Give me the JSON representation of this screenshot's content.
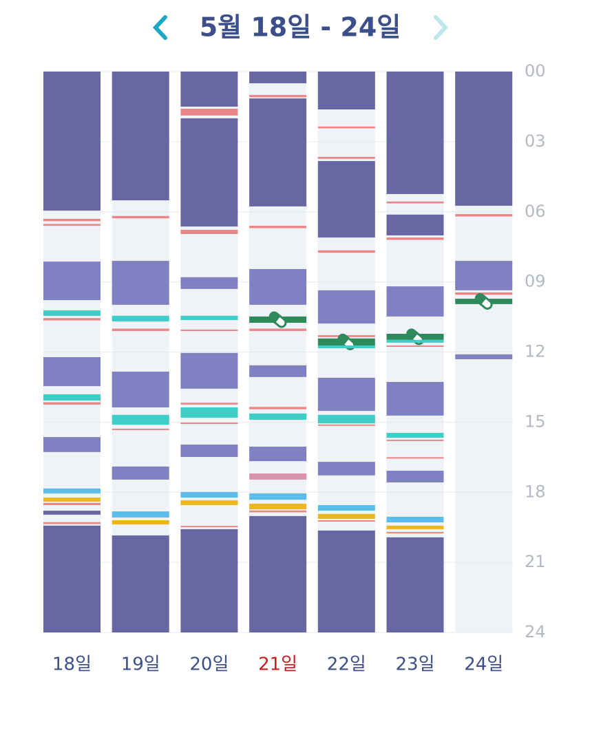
{
  "header": {
    "title": "5월 18일 - 24일"
  },
  "chart_data": {
    "type": "timeline",
    "ylim": [
      0,
      24
    ],
    "yticks": [
      {
        "value": 0,
        "label": "00"
      },
      {
        "value": 3,
        "label": "03"
      },
      {
        "value": 6,
        "label": "06"
      },
      {
        "value": 9,
        "label": "09"
      },
      12,
      15,
      18,
      21,
      24
    ],
    "grid": true,
    "background": "#eff3f7",
    "categories": [
      "18일",
      "19일",
      "20일",
      "21일",
      "22일",
      "23일",
      "24일"
    ],
    "label_colors": [
      "#3d4f8a",
      "#3d4f8a",
      "#3d4f8a",
      "#c81e1e",
      "#3d4f8a",
      "#3d4f8a",
      "#3d4f8a"
    ],
    "segments": [
      [
        {
          "start": 0,
          "end": 5.95,
          "color": "#6767a3"
        },
        {
          "start": 6.3,
          "end": 6.4,
          "color": "#ec8585"
        },
        {
          "start": 6.52,
          "end": 6.6,
          "color": "#ec8585"
        },
        {
          "start": 8.13,
          "end": 9.78,
          "color": "#8081c2"
        },
        {
          "start": 10.22,
          "end": 10.45,
          "color": "#3fcdc8"
        },
        {
          "start": 10.55,
          "end": 10.65,
          "color": "#ec8585"
        },
        {
          "start": 12.22,
          "end": 13.46,
          "color": "#8081c2"
        },
        {
          "start": 13.81,
          "end": 14.08,
          "color": "#3fcdc8"
        },
        {
          "start": 14.15,
          "end": 14.25,
          "color": "#ec8585"
        },
        {
          "start": 15.64,
          "end": 16.28,
          "color": "#8081c2"
        },
        {
          "start": 17.84,
          "end": 18.05,
          "color": "#5bbdec"
        },
        {
          "start": 18.23,
          "end": 18.4,
          "color": "#eab71e"
        },
        {
          "start": 18.46,
          "end": 18.55,
          "color": "#ec8585"
        },
        {
          "start": 18.79,
          "end": 18.96,
          "color": "#6767a3"
        },
        {
          "start": 19.28,
          "end": 19.36,
          "color": "#ec8585"
        },
        {
          "start": 19.43,
          "end": 24,
          "color": "#6767a3"
        }
      ],
      [
        {
          "start": 0,
          "end": 5.51,
          "color": "#6767a3"
        },
        {
          "start": 6.18,
          "end": 6.28,
          "color": "#ec8585"
        },
        {
          "start": 8.1,
          "end": 9.98,
          "color": "#8081c2"
        },
        {
          "start": 10.45,
          "end": 10.69,
          "color": "#3fcdc8"
        },
        {
          "start": 11.0,
          "end": 11.1,
          "color": "#ec8585"
        },
        {
          "start": 12.84,
          "end": 14.37,
          "color": "#8081c2"
        },
        {
          "start": 14.69,
          "end": 15.11,
          "color": "#3fcdc8"
        },
        {
          "start": 15.28,
          "end": 15.34,
          "color": "#ec8585"
        },
        {
          "start": 16.9,
          "end": 17.46,
          "color": "#8081c2"
        },
        {
          "start": 18.82,
          "end": 19.08,
          "color": "#5bbdec"
        },
        {
          "start": 19.2,
          "end": 19.38,
          "color": "#eab71e"
        },
        {
          "start": 19.85,
          "end": 24,
          "color": "#6767a3"
        }
      ],
      [
        {
          "start": 0,
          "end": 1.5,
          "color": "#6767a3"
        },
        {
          "start": 1.59,
          "end": 1.88,
          "color": "#ec8585"
        },
        {
          "start": 2.0,
          "end": 6.63,
          "color": "#6767a3"
        },
        {
          "start": 6.77,
          "end": 6.95,
          "color": "#ec8585"
        },
        {
          "start": 8.8,
          "end": 9.3,
          "color": "#8081c2"
        },
        {
          "start": 10.45,
          "end": 10.63,
          "color": "#3fcdc8"
        },
        {
          "start": 11.04,
          "end": 11.1,
          "color": "#ec8585"
        },
        {
          "start": 12.04,
          "end": 13.57,
          "color": "#8081c2"
        },
        {
          "start": 14.17,
          "end": 14.25,
          "color": "#ec8585"
        },
        {
          "start": 14.37,
          "end": 14.81,
          "color": "#3fcdc8"
        },
        {
          "start": 15.02,
          "end": 15.08,
          "color": "#ec8585"
        },
        {
          "start": 15.96,
          "end": 16.49,
          "color": "#8081c2"
        },
        {
          "start": 17.99,
          "end": 18.23,
          "color": "#5bbdec"
        },
        {
          "start": 18.35,
          "end": 18.55,
          "color": "#eab71e"
        },
        {
          "start": 19.44,
          "end": 19.5,
          "color": "#ec8585"
        },
        {
          "start": 19.58,
          "end": 24,
          "color": "#6767a3"
        }
      ],
      [
        {
          "start": 0,
          "end": 0.5,
          "color": "#6767a3"
        },
        {
          "start": 1.0,
          "end": 1.1,
          "color": "#ec8585"
        },
        {
          "start": 1.15,
          "end": 5.77,
          "color": "#6767a3"
        },
        {
          "start": 6.6,
          "end": 6.7,
          "color": "#ec8585"
        },
        {
          "start": 8.45,
          "end": 9.98,
          "color": "#8081c2"
        },
        {
          "start": 10.48,
          "end": 10.75,
          "color": "#2e8a5a",
          "icon": true
        },
        {
          "start": 11.0,
          "end": 11.1,
          "color": "#ec8585"
        },
        {
          "start": 12.57,
          "end": 13.07,
          "color": "#8081c2"
        },
        {
          "start": 14.35,
          "end": 14.45,
          "color": "#ec8585"
        },
        {
          "start": 14.63,
          "end": 14.9,
          "color": "#3fcdc8"
        },
        {
          "start": 16.05,
          "end": 16.67,
          "color": "#8081c2"
        },
        {
          "start": 17.2,
          "end": 17.46,
          "color": "#d993aa"
        },
        {
          "start": 18.05,
          "end": 18.32,
          "color": "#5bbdec"
        },
        {
          "start": 18.49,
          "end": 18.73,
          "color": "#eab71e"
        },
        {
          "start": 18.78,
          "end": 18.86,
          "color": "#ec8585"
        },
        {
          "start": 19.02,
          "end": 24,
          "color": "#6767a3"
        }
      ],
      [
        {
          "start": 0,
          "end": 1.62,
          "color": "#6767a3"
        },
        {
          "start": 2.35,
          "end": 2.43,
          "color": "#ec8585"
        },
        {
          "start": 3.65,
          "end": 3.73,
          "color": "#ec8585"
        },
        {
          "start": 3.83,
          "end": 7.1,
          "color": "#6767a3"
        },
        {
          "start": 7.65,
          "end": 7.75,
          "color": "#ec8585"
        },
        {
          "start": 9.36,
          "end": 10.78,
          "color": "#8081c2"
        },
        {
          "start": 11.28,
          "end": 11.36,
          "color": "#ec8585"
        },
        {
          "start": 11.42,
          "end": 11.72,
          "color": "#2e8a5a",
          "icon": true
        },
        {
          "start": 11.72,
          "end": 11.84,
          "color": "#3fcdc8"
        },
        {
          "start": 13.1,
          "end": 14.52,
          "color": "#8081c2"
        },
        {
          "start": 14.69,
          "end": 15.05,
          "color": "#3fcdc8"
        },
        {
          "start": 15.1,
          "end": 15.16,
          "color": "#ec8585"
        },
        {
          "start": 16.7,
          "end": 17.28,
          "color": "#8081c2"
        },
        {
          "start": 18.55,
          "end": 18.79,
          "color": "#5bbdec"
        },
        {
          "start": 18.93,
          "end": 19.14,
          "color": "#eab71e"
        },
        {
          "start": 19.2,
          "end": 19.26,
          "color": "#ec8585"
        },
        {
          "start": 19.64,
          "end": 24,
          "color": "#6767a3"
        }
      ],
      [
        {
          "start": 0,
          "end": 5.24,
          "color": "#6767a3"
        },
        {
          "start": 5.56,
          "end": 5.64,
          "color": "#ec8585"
        },
        {
          "start": 6.12,
          "end": 7.01,
          "color": "#6767a3"
        },
        {
          "start": 7.1,
          "end": 7.2,
          "color": "#ec8585"
        },
        {
          "start": 9.19,
          "end": 10.48,
          "color": "#8081c2"
        },
        {
          "start": 11.22,
          "end": 11.48,
          "color": "#2e8a5a",
          "icon": true
        },
        {
          "start": 11.48,
          "end": 11.6,
          "color": "#3fcdc8"
        },
        {
          "start": 11.72,
          "end": 11.78,
          "color": "#ec8585"
        },
        {
          "start": 13.28,
          "end": 14.72,
          "color": "#8081c2"
        },
        {
          "start": 15.46,
          "end": 15.67,
          "color": "#3fcdc8"
        },
        {
          "start": 15.75,
          "end": 15.81,
          "color": "#ec8585"
        },
        {
          "start": 16.5,
          "end": 16.56,
          "color": "#ec8585"
        },
        {
          "start": 17.08,
          "end": 17.58,
          "color": "#8081c2"
        },
        {
          "start": 19.05,
          "end": 19.29,
          "color": "#5bbdec"
        },
        {
          "start": 19.43,
          "end": 19.58,
          "color": "#eab71e"
        },
        {
          "start": 19.7,
          "end": 19.76,
          "color": "#ec8585"
        },
        {
          "start": 19.93,
          "end": 24,
          "color": "#6767a3"
        }
      ],
      [
        {
          "start": 0,
          "end": 5.74,
          "color": "#6767a3"
        },
        {
          "start": 6.1,
          "end": 6.2,
          "color": "#ec8585"
        },
        {
          "start": 8.1,
          "end": 9.36,
          "color": "#8081c2"
        },
        {
          "start": 9.45,
          "end": 9.55,
          "color": "#ec8585"
        },
        {
          "start": 9.72,
          "end": 9.95,
          "color": "#2e8a5a",
          "icon": true
        },
        {
          "start": 12.1,
          "end": 12.31,
          "color": "#8081c2"
        }
      ]
    ]
  }
}
